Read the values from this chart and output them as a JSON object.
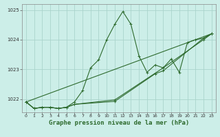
{
  "background_color": "#cceee8",
  "grid_color": "#aad4cc",
  "line_color": "#2d6a2d",
  "xlabel": "Graphe pression niveau de la mer (hPa)",
  "xlabel_fontsize": 6.5,
  "xlim": [
    -0.5,
    23.5
  ],
  "ylim": [
    1021.55,
    1025.2
  ],
  "yticks": [
    1022,
    1023,
    1024,
    1025
  ],
  "xticks": [
    0,
    1,
    2,
    3,
    4,
    5,
    6,
    7,
    8,
    9,
    10,
    11,
    12,
    13,
    14,
    15,
    16,
    17,
    18,
    19,
    20,
    21,
    22,
    23
  ],
  "series": [
    {
      "x": [
        0,
        1,
        2,
        3,
        4,
        5,
        6,
        7,
        8,
        9,
        10,
        11,
        12,
        13,
        14,
        15,
        16,
        17,
        18,
        19,
        20,
        21,
        22,
        23
      ],
      "y": [
        1021.9,
        1021.68,
        1021.72,
        1021.72,
        1021.68,
        1021.72,
        1021.9,
        1022.28,
        1023.05,
        1023.32,
        1024.0,
        1024.52,
        1024.95,
        1024.52,
        1023.45,
        1022.9,
        1023.15,
        1023.05,
        1023.35,
        1022.9,
        1023.9,
        1024.0,
        1024.05,
        1024.2
      ]
    },
    {
      "x": [
        0,
        1,
        2,
        3,
        4,
        5,
        6,
        11,
        16,
        17,
        22,
        23
      ],
      "y": [
        1021.9,
        1021.68,
        1021.72,
        1021.72,
        1021.68,
        1021.72,
        1021.82,
        1021.92,
        1022.85,
        1022.95,
        1024.05,
        1024.2
      ]
    },
    {
      "x": [
        0,
        23
      ],
      "y": [
        1021.9,
        1024.2
      ]
    },
    {
      "x": [
        0,
        1,
        2,
        3,
        4,
        5,
        6,
        11,
        17,
        22,
        23
      ],
      "y": [
        1021.9,
        1021.68,
        1021.72,
        1021.72,
        1021.68,
        1021.72,
        1021.82,
        1021.97,
        1023.05,
        1024.0,
        1024.2
      ]
    }
  ]
}
